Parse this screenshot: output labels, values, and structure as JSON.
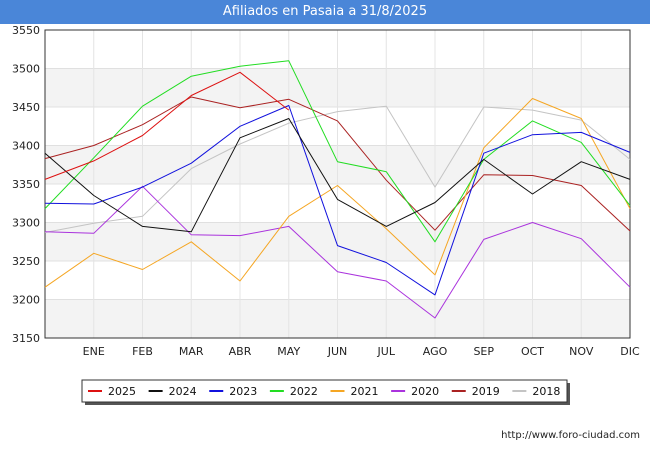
{
  "chart_data": {
    "type": "line",
    "title": "Afiliados en Pasaia a 31/8/2025",
    "categories": [
      "",
      "ENE",
      "FEB",
      "MAR",
      "ABR",
      "MAY",
      "JUN",
      "JUL",
      "AGO",
      "SEP",
      "OCT",
      "NOV",
      "DIC"
    ],
    "ylim": [
      3150,
      3550
    ],
    "yticks": [
      3150,
      3200,
      3250,
      3300,
      3350,
      3400,
      3450,
      3500,
      3550
    ],
    "grid": true,
    "legend_position": "bottom",
    "series": [
      {
        "name": "2025",
        "color": "#dd1111",
        "values": [
          3356,
          3380,
          3413,
          3465,
          3495,
          3446,
          null,
          null,
          null,
          null,
          null,
          null,
          null
        ]
      },
      {
        "name": "2024",
        "color": "#111111",
        "values": [
          3390,
          3335,
          3295,
          3288,
          3410,
          3435,
          3330,
          3295,
          3326,
          3382,
          3337,
          3379,
          3356
        ]
      },
      {
        "name": "2023",
        "color": "#1111dd",
        "values": [
          3325,
          3324,
          3346,
          3377,
          3425,
          3452,
          3270,
          3248,
          3206,
          3390,
          3414,
          3417,
          3391
        ]
      },
      {
        "name": "2022",
        "color": "#22dd22",
        "values": [
          3318,
          3384,
          3451,
          3490,
          3503,
          3510,
          3379,
          3366,
          3275,
          3382,
          3432,
          3404,
          3322
        ]
      },
      {
        "name": "2021",
        "color": "#f5a623",
        "values": [
          3216,
          3260,
          3239,
          3275,
          3224,
          3308,
          3348,
          3292,
          3232,
          3397,
          3461,
          3435,
          3318
        ]
      },
      {
        "name": "2020",
        "color": "#aa33dd",
        "values": [
          3288,
          3286,
          3347,
          3284,
          3283,
          3295,
          3236,
          3224,
          3176,
          3278,
          3300,
          3279,
          3216
        ]
      },
      {
        "name": "2019",
        "color": "#aa2222",
        "values": [
          3383,
          3400,
          3427,
          3463,
          3449,
          3460,
          3432,
          3355,
          3290,
          3362,
          3361,
          3348,
          3289
        ]
      },
      {
        "name": "2018",
        "color": "#c4c4c4",
        "values": [
          3287,
          3299,
          3308,
          3370,
          3402,
          3429,
          3444,
          3451,
          3346,
          3450,
          3446,
          3433,
          3382
        ]
      }
    ]
  },
  "credit": "http://www.foro-ciudad.com"
}
